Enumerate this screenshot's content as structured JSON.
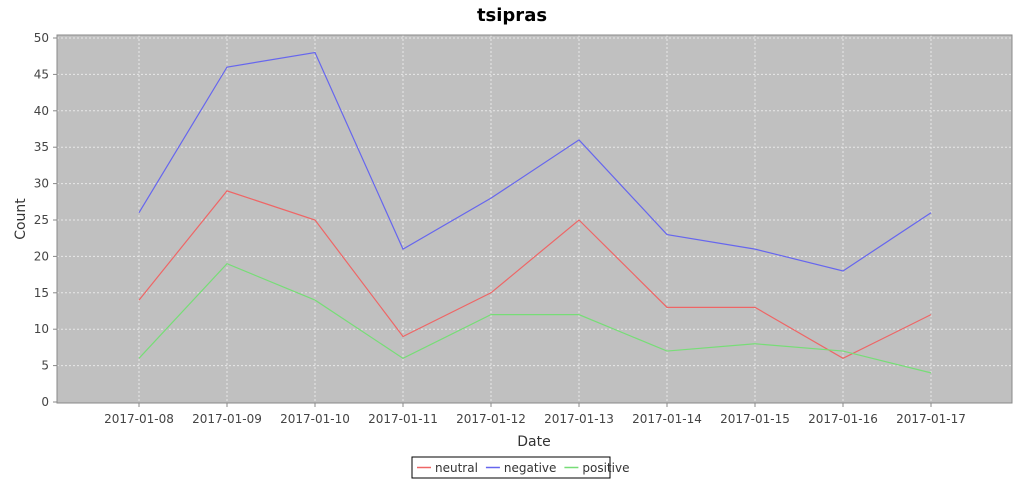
{
  "chart_data": {
    "type": "line",
    "title": "tsipras",
    "xlabel": "Date",
    "ylabel": "Count",
    "x": [
      "2017-01-08",
      "2017-01-09",
      "2017-01-10",
      "2017-01-11",
      "2017-01-12",
      "2017-01-13",
      "2017-01-14",
      "2017-01-15",
      "2017-01-16",
      "2017-01-17"
    ],
    "ylim": [
      0,
      50
    ],
    "yticks": [
      0,
      5,
      10,
      15,
      20,
      25,
      30,
      35,
      40,
      45,
      50
    ],
    "grid": true,
    "legend_position": "bottom",
    "series": [
      {
        "name": "neutral",
        "color": "#ee6666",
        "values": [
          14,
          29,
          25,
          9,
          15,
          25,
          13,
          13,
          6,
          12
        ]
      },
      {
        "name": "negative",
        "color": "#6666ee",
        "values": [
          26,
          46,
          48,
          21,
          28,
          36,
          23,
          21,
          18,
          26
        ]
      },
      {
        "name": "positive",
        "color": "#77dd77",
        "values": [
          6,
          19,
          14,
          6,
          12,
          12,
          7,
          8,
          7,
          4
        ]
      }
    ],
    "colors": {
      "plot_background": "#c0c0c0",
      "grid": "#e8e8e8"
    }
  }
}
